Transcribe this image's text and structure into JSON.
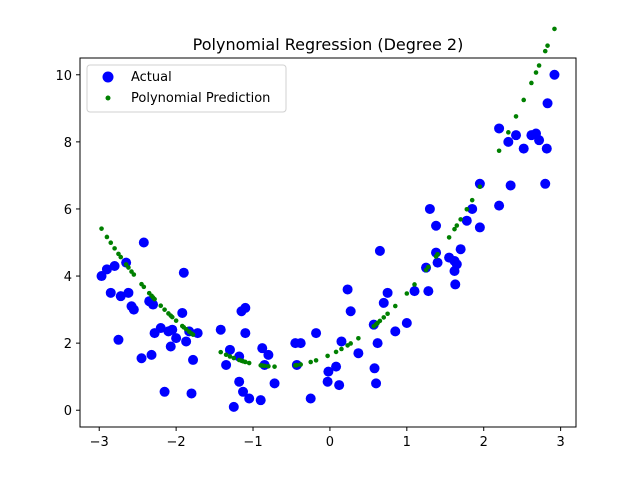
{
  "chart_data": {
    "type": "scatter",
    "title": "Polynomial Regression (Degree 2)",
    "xlabel": "",
    "ylabel": "",
    "xlim": [
      -3.25,
      3.2
    ],
    "ylim": [
      -0.5,
      10.5
    ],
    "xticks": [
      -3,
      -2,
      -1,
      0,
      1,
      2,
      3
    ],
    "yticks": [
      0,
      2,
      4,
      6,
      8,
      10
    ],
    "grid": false,
    "legend_position": "top-left",
    "series": [
      {
        "name": "Actual",
        "color": "#0000ff",
        "marker": "circle",
        "points": [
          [
            -2.97,
            4.0
          ],
          [
            -2.9,
            4.2
          ],
          [
            -2.85,
            3.5
          ],
          [
            -2.8,
            4.3
          ],
          [
            -2.75,
            2.1
          ],
          [
            -2.72,
            3.4
          ],
          [
            -2.65,
            4.4
          ],
          [
            -2.62,
            3.5
          ],
          [
            -2.58,
            3.1
          ],
          [
            -2.55,
            3.0
          ],
          [
            -2.45,
            1.55
          ],
          [
            -2.42,
            5.0
          ],
          [
            -2.35,
            3.25
          ],
          [
            -2.32,
            1.65
          ],
          [
            -2.3,
            3.15
          ],
          [
            -2.28,
            2.3
          ],
          [
            -2.2,
            2.45
          ],
          [
            -2.15,
            0.55
          ],
          [
            -2.1,
            2.35
          ],
          [
            -2.07,
            1.9
          ],
          [
            -2.05,
            2.4
          ],
          [
            -2.0,
            2.15
          ],
          [
            -1.92,
            2.9
          ],
          [
            -1.9,
            4.1
          ],
          [
            -1.87,
            2.05
          ],
          [
            -1.83,
            2.35
          ],
          [
            -1.8,
            0.5
          ],
          [
            -1.78,
            1.5
          ],
          [
            -1.72,
            2.3
          ],
          [
            -1.42,
            2.4
          ],
          [
            -1.35,
            1.35
          ],
          [
            -1.3,
            1.8
          ],
          [
            -1.25,
            0.1
          ],
          [
            -1.18,
            1.6
          ],
          [
            -1.18,
            0.85
          ],
          [
            -1.15,
            2.95
          ],
          [
            -1.13,
            0.55
          ],
          [
            -1.1,
            3.05
          ],
          [
            -1.1,
            2.3
          ],
          [
            -1.05,
            0.35
          ],
          [
            -0.9,
            0.3
          ],
          [
            -0.88,
            1.85
          ],
          [
            -0.85,
            1.35
          ],
          [
            -0.8,
            1.65
          ],
          [
            -0.72,
            0.8
          ],
          [
            -0.45,
            2.0
          ],
          [
            -0.43,
            1.35
          ],
          [
            -0.38,
            2.0
          ],
          [
            -0.25,
            0.35
          ],
          [
            -0.18,
            2.3
          ],
          [
            -0.03,
            0.85
          ],
          [
            -0.02,
            1.15
          ],
          [
            0.08,
            1.3
          ],
          [
            0.12,
            0.75
          ],
          [
            0.15,
            2.05
          ],
          [
            0.23,
            3.6
          ],
          [
            0.27,
            2.95
          ],
          [
            0.37,
            1.7
          ],
          [
            0.57,
            2.55
          ],
          [
            0.58,
            1.25
          ],
          [
            0.6,
            0.8
          ],
          [
            0.62,
            2.0
          ],
          [
            0.65,
            4.75
          ],
          [
            0.7,
            3.2
          ],
          [
            0.75,
            3.5
          ],
          [
            0.85,
            2.35
          ],
          [
            1.0,
            2.6
          ],
          [
            1.1,
            3.55
          ],
          [
            1.25,
            4.25
          ],
          [
            1.28,
            3.55
          ],
          [
            1.3,
            6.0
          ],
          [
            1.38,
            4.7
          ],
          [
            1.38,
            5.5
          ],
          [
            1.4,
            4.4
          ],
          [
            1.55,
            4.55
          ],
          [
            1.62,
            4.45
          ],
          [
            1.62,
            4.15
          ],
          [
            1.63,
            3.75
          ],
          [
            1.65,
            4.35
          ],
          [
            1.7,
            4.8
          ],
          [
            1.78,
            5.65
          ],
          [
            1.85,
            6.0
          ],
          [
            1.95,
            6.75
          ],
          [
            1.95,
            5.45
          ],
          [
            2.2,
            8.4
          ],
          [
            2.2,
            6.1
          ],
          [
            2.32,
            8.0
          ],
          [
            2.35,
            6.7
          ],
          [
            2.42,
            8.2
          ],
          [
            2.52,
            7.8
          ],
          [
            2.62,
            8.2
          ],
          [
            2.68,
            8.25
          ],
          [
            2.72,
            8.05
          ],
          [
            2.8,
            6.75
          ],
          [
            2.82,
            7.8
          ],
          [
            2.83,
            9.15
          ],
          [
            2.92,
            10.0
          ]
        ]
      },
      {
        "name": "Polynomial Prediction",
        "color": "#008000",
        "marker": "small-circle",
        "equation": {
          "a": 0.78,
          "b": 1.05,
          "c": 1.65
        },
        "x": [
          -2.97,
          -2.9,
          -2.85,
          -2.8,
          -2.75,
          -2.72,
          -2.65,
          -2.62,
          -2.58,
          -2.55,
          -2.45,
          -2.42,
          -2.35,
          -2.32,
          -2.3,
          -2.28,
          -2.2,
          -2.15,
          -2.1,
          -2.07,
          -2.05,
          -2.0,
          -1.92,
          -1.9,
          -1.87,
          -1.83,
          -1.8,
          -1.78,
          -1.42,
          -1.35,
          -1.3,
          -1.25,
          -1.18,
          -1.15,
          -1.13,
          -1.1,
          -1.05,
          -0.9,
          -0.88,
          -0.85,
          -0.8,
          -0.72,
          -0.45,
          -0.43,
          -0.38,
          -0.25,
          -0.18,
          -0.03,
          0.08,
          0.15,
          0.23,
          0.27,
          0.37,
          0.57,
          0.6,
          0.62,
          0.65,
          0.7,
          0.75,
          0.85,
          1.0,
          1.1,
          1.25,
          1.28,
          1.38,
          1.4,
          1.55,
          1.62,
          1.65,
          1.7,
          1.78,
          1.85,
          1.95,
          2.2,
          2.32,
          2.42,
          2.52,
          2.62,
          2.68,
          2.72,
          2.8,
          2.83,
          2.92
        ]
      }
    ]
  }
}
